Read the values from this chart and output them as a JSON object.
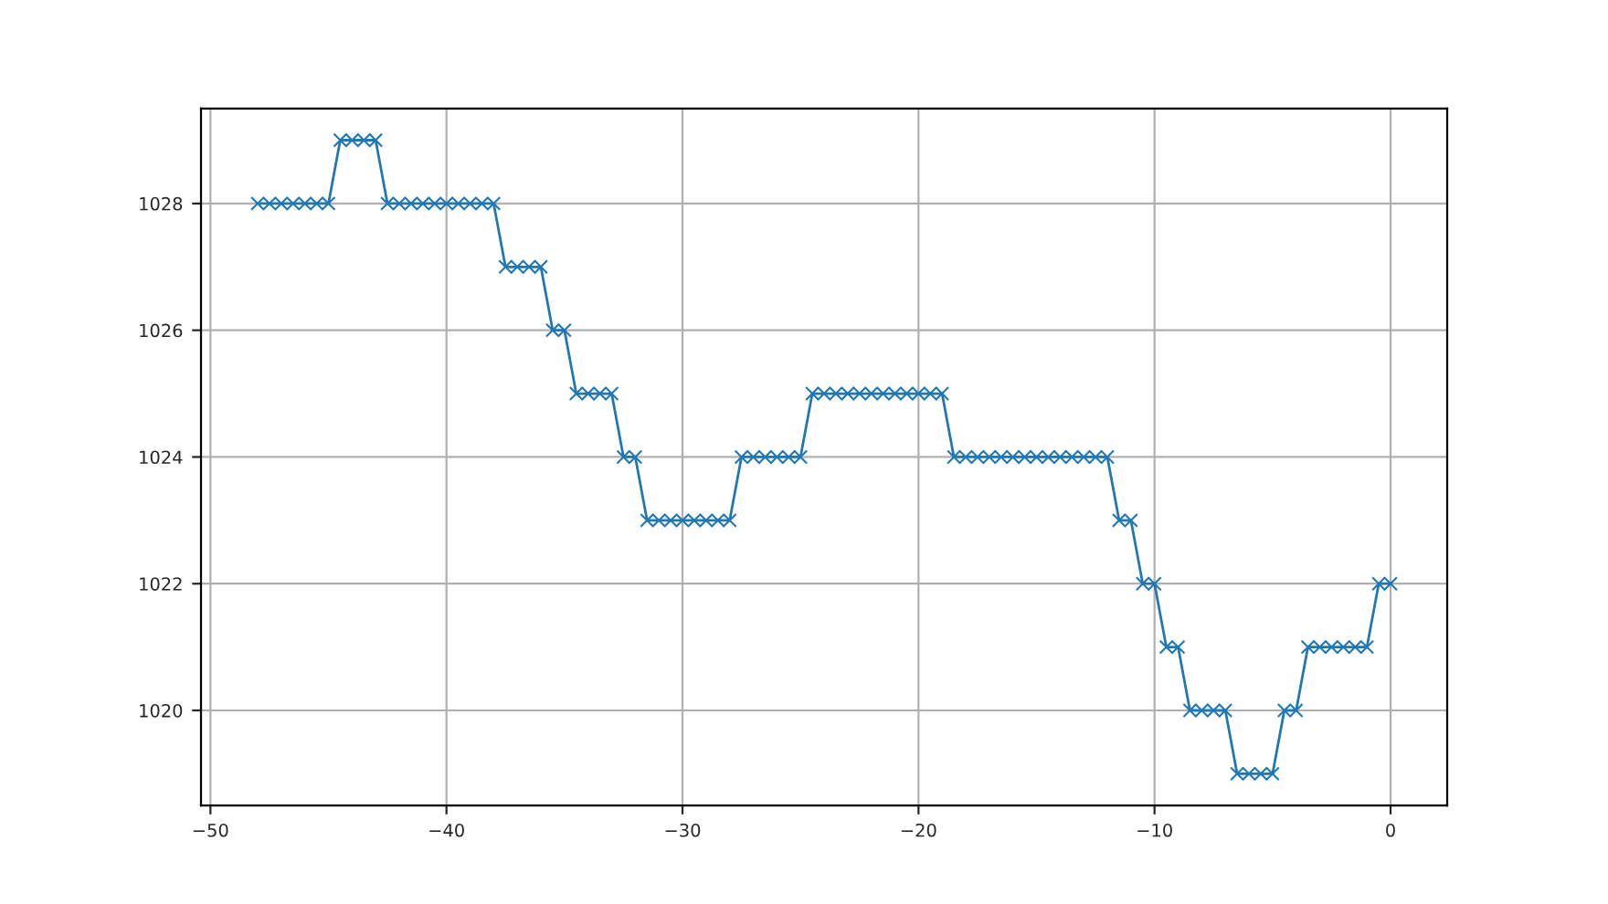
{
  "chart_data": {
    "type": "line",
    "color": "#1f77b4",
    "marker": "cross",
    "line_style": "solid",
    "grid": true,
    "x": [
      -48,
      -47.5,
      -47,
      -46.5,
      -46,
      -45.5,
      -45,
      -44.5,
      -44,
      -43.5,
      -43,
      -42.5,
      -42,
      -41.5,
      -41,
      -40.5,
      -40,
      -39.5,
      -39,
      -38.5,
      -38,
      -37.5,
      -37,
      -36.5,
      -36,
      -35.5,
      -35,
      -34.5,
      -34,
      -33.5,
      -33,
      -32.5,
      -32,
      -31.5,
      -31,
      -30.5,
      -30,
      -29.5,
      -29,
      -28.5,
      -28,
      -27.5,
      -27,
      -26.5,
      -26,
      -25.5,
      -25,
      -24.5,
      -24,
      -23.5,
      -23,
      -22.5,
      -22,
      -21.5,
      -21,
      -20.5,
      -20,
      -19.5,
      -19,
      -18.5,
      -18,
      -17.5,
      -17,
      -16.5,
      -16,
      -15.5,
      -15,
      -14.5,
      -14,
      -13.5,
      -13,
      -12.5,
      -12,
      -11.5,
      -11,
      -10.5,
      -10,
      -9.5,
      -9,
      -8.5,
      -8,
      -7.5,
      -7,
      -6.5,
      -6,
      -5.5,
      -5,
      -4.5,
      -4,
      -3.5,
      -3,
      -2.5,
      -2,
      -1.5,
      -1,
      -0.5,
      0
    ],
    "values": [
      1028,
      1028,
      1028,
      1028,
      1028,
      1028,
      1028,
      1029,
      1029,
      1029,
      1029,
      1028,
      1028,
      1028,
      1028,
      1028,
      1028,
      1028,
      1028,
      1028,
      1028,
      1027,
      1027,
      1027,
      1027,
      1026,
      1026,
      1025,
      1025,
      1025,
      1025,
      1024,
      1024,
      1023,
      1023,
      1023,
      1023,
      1023,
      1023,
      1023,
      1023,
      1024,
      1024,
      1024,
      1024,
      1024,
      1024,
      1025,
      1025,
      1025,
      1025,
      1025,
      1025,
      1025,
      1025,
      1025,
      1025,
      1025,
      1025,
      1024,
      1024,
      1024,
      1024,
      1024,
      1024,
      1024,
      1024,
      1024,
      1024,
      1024,
      1024,
      1024,
      1024,
      1023,
      1023,
      1022,
      1022,
      1021,
      1021,
      1020,
      1020,
      1020,
      1020,
      1019,
      1019,
      1019,
      1019,
      1020,
      1020,
      1021,
      1021,
      1021,
      1021,
      1021,
      1021,
      1022,
      1022
    ],
    "xlim": [
      -50.4,
      2.4
    ],
    "ylim": [
      1018.5,
      1029.5
    ],
    "xticks": [
      {
        "value": -50,
        "label": "−50"
      },
      {
        "value": -40,
        "label": "−40"
      },
      {
        "value": -30,
        "label": "−30"
      },
      {
        "value": -20,
        "label": "−20"
      },
      {
        "value": -10,
        "label": "−10"
      },
      0
    ],
    "yticks": [
      1020,
      1022,
      1024,
      1026,
      1028
    ]
  }
}
